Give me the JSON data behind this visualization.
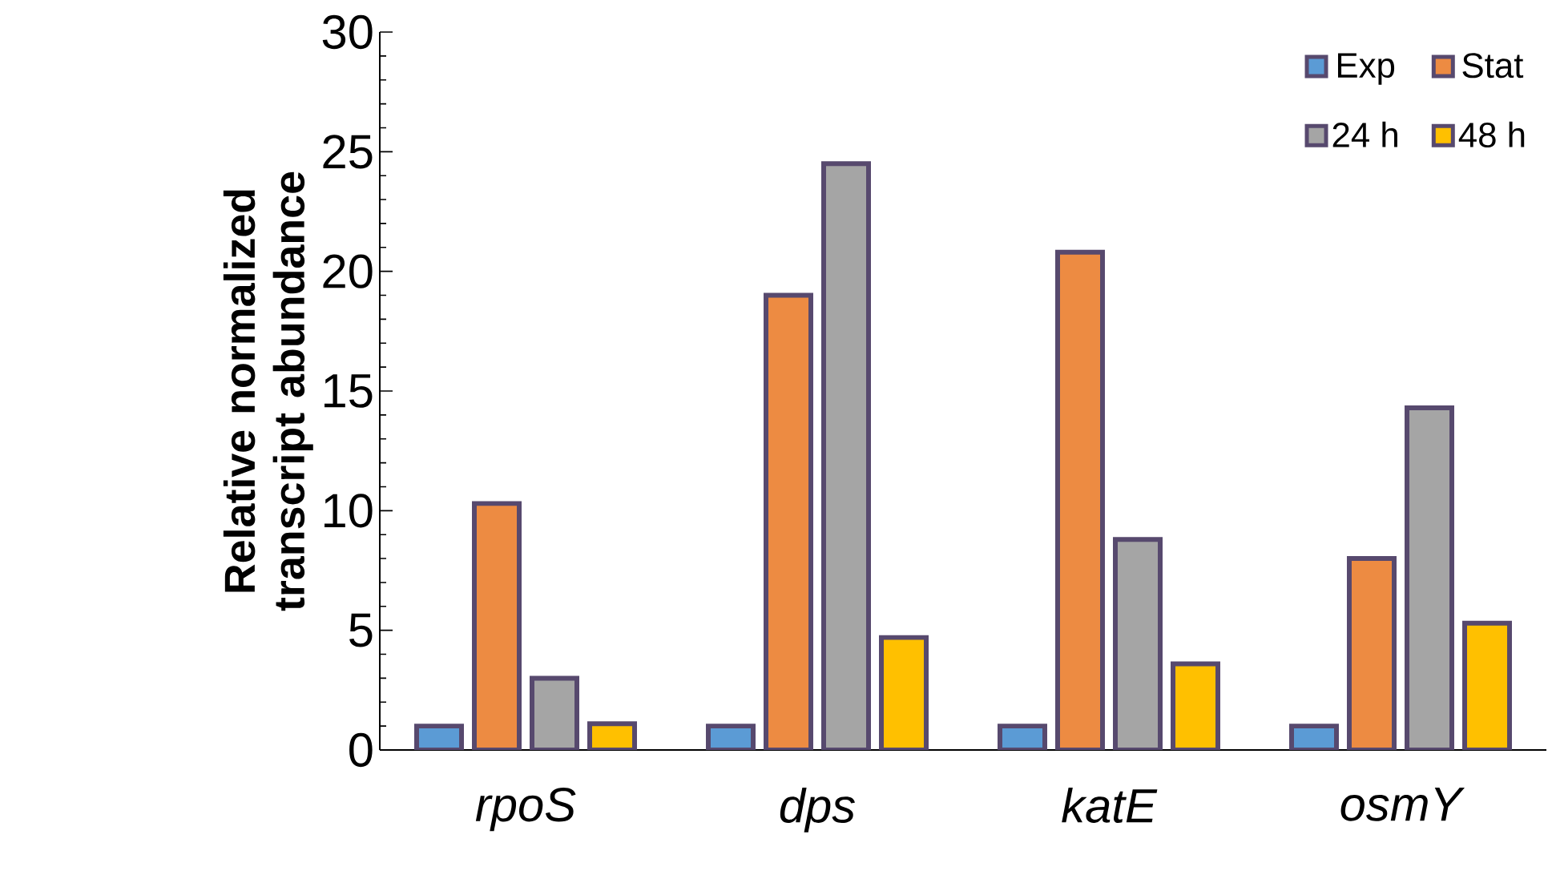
{
  "chart_data": {
    "type": "bar",
    "ylabel": "Relative normalized transcript abundance",
    "categories": [
      "rpoS",
      "dps",
      "katE",
      "osmY"
    ],
    "series": [
      {
        "name": "Exp",
        "color": "#5b9bd5",
        "values": [
          1,
          1,
          1,
          1
        ]
      },
      {
        "name": "Stat",
        "color": "#ed8b42",
        "values": [
          10.3,
          19,
          20.8,
          8
        ]
      },
      {
        "name": "24 h",
        "color": "#a5a5a5",
        "values": [
          3,
          24.5,
          8.8,
          14.3
        ]
      },
      {
        "name": "48 h",
        "color": "#ffc000",
        "values": [
          1.1,
          4.7,
          3.6,
          5.3
        ]
      }
    ],
    "ylim": [
      0,
      30
    ],
    "yticks": [
      0,
      5,
      10,
      15,
      20,
      25,
      30
    ],
    "legend": "top right",
    "grid": false
  }
}
